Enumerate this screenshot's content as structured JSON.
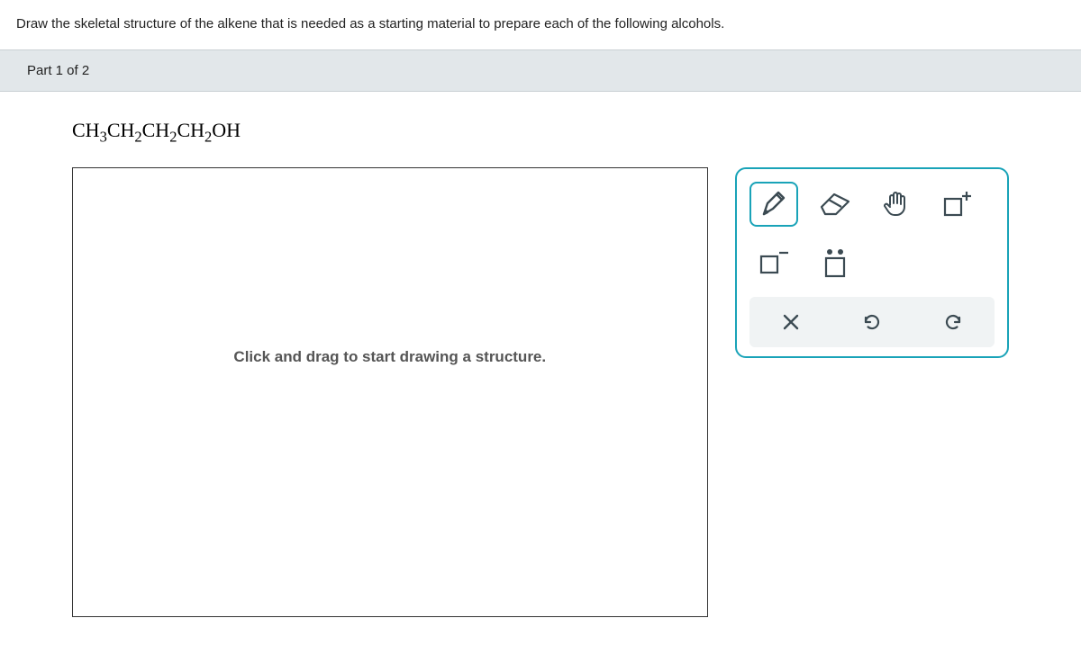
{
  "question_text": "Draw the skeletal structure of the alkene that is needed as a starting material to prepare each of the following alcohols.",
  "part_label": "Part 1 of 2",
  "formula_html": "CH<sub>3</sub>CH<sub>2</sub>CH<sub>2</sub>CH<sub>2</sub>OH",
  "canvas_hint": "Click and drag to start drawing a structure.",
  "colors": {
    "accent": "#19a3b8",
    "header_bg": "#e2e7ea",
    "tool_icon": "#3b4a52",
    "action_row_bg": "#f0f3f4"
  },
  "tools": {
    "draw": "draw-tool",
    "erase": "erase-tool",
    "move": "move-tool",
    "charge_plus": "charge-plus-tool",
    "charge_minus": "charge-minus-tool",
    "lone_pair": "lone-pair-tool"
  },
  "actions": {
    "clear": "clear",
    "undo": "undo",
    "redo": "redo"
  }
}
